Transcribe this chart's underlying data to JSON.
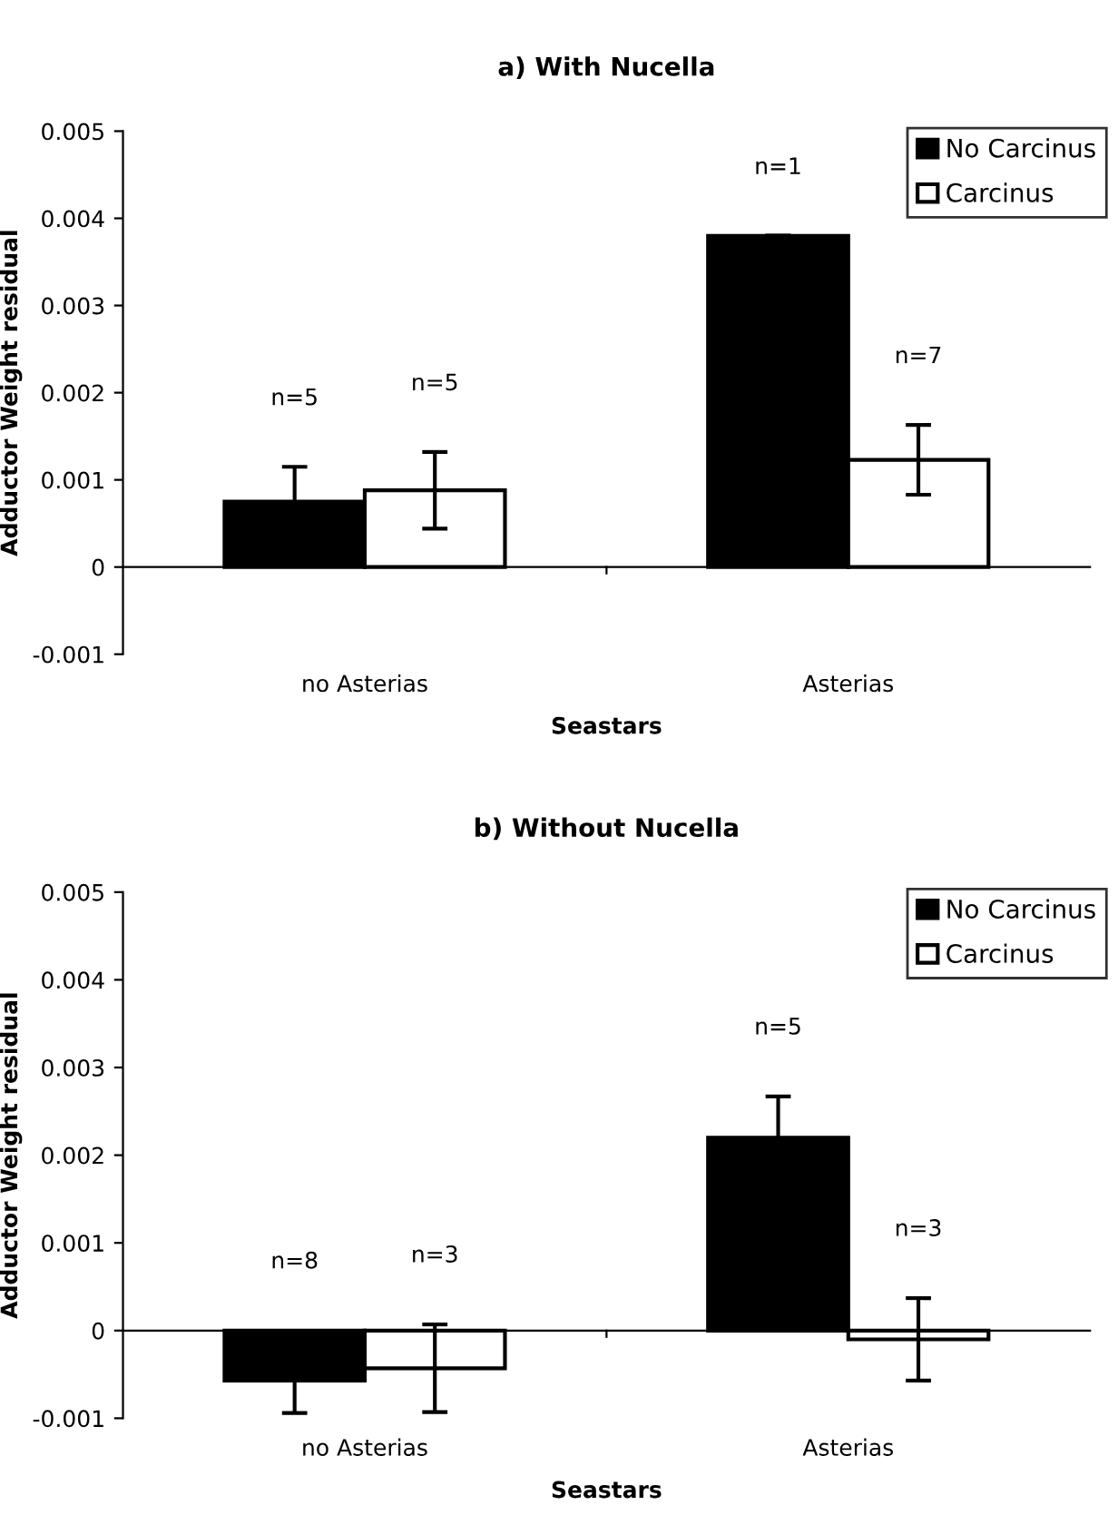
{
  "chart_data": [
    {
      "type": "bar",
      "title": "a) With Nucella",
      "xlabel": "Seastars",
      "ylabel": "Adductor Weight residual",
      "categories": [
        "no Asterias",
        "Asterias"
      ],
      "series": [
        {
          "name": "No Carcinus",
          "color": "#000000",
          "values": [
            0.00075,
            0.0038
          ],
          "errors": [
            0.0004,
            null
          ]
        },
        {
          "name": "Carcinus",
          "color": "#ffffff",
          "values": [
            0.00088,
            0.00123
          ],
          "errors": [
            0.00044,
            0.0004
          ]
        }
      ],
      "annotations": [
        "n=5",
        "n=5",
        "n=1",
        "n=7"
      ],
      "ylim": [
        -0.001,
        0.005
      ],
      "yticks": [
        -0.001,
        0,
        0.001,
        0.002,
        0.003,
        0.004,
        0.005
      ],
      "legend": "top right"
    },
    {
      "type": "bar",
      "title": "b) Without Nucella",
      "xlabel": "Seastars",
      "ylabel": "Adductor Weight residual",
      "categories": [
        "no Asterias",
        "Asterias"
      ],
      "series": [
        {
          "name": "No Carcinus",
          "color": "#000000",
          "values": [
            -0.00057,
            0.0022
          ],
          "errors": [
            0.00037,
            0.00047
          ]
        },
        {
          "name": "Carcinus",
          "color": "#ffffff",
          "values": [
            -0.00043,
            -0.0001
          ],
          "errors": [
            0.0005,
            0.00047
          ]
        }
      ],
      "annotations": [
        "n=8",
        "n=3",
        "n=5",
        "n=3"
      ],
      "ylim": [
        -0.001,
        0.005
      ],
      "yticks": [
        -0.001,
        0,
        0.001,
        0.002,
        0.003,
        0.004,
        0.005
      ],
      "legend": "top right"
    }
  ]
}
